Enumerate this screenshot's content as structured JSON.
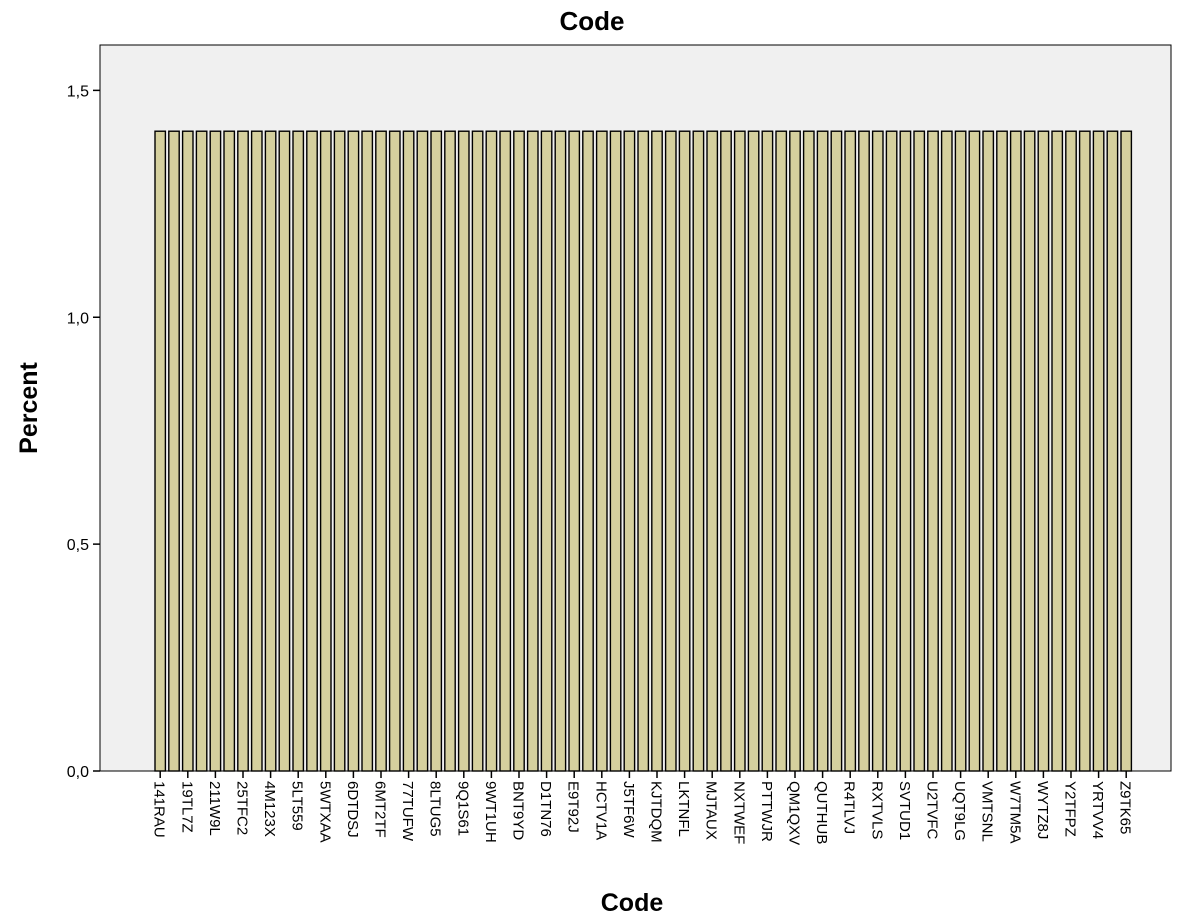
{
  "chart_data": {
    "type": "bar",
    "title": "Code",
    "xlabel": "Code",
    "ylabel": "Percent",
    "ylim": [
      0,
      1.6
    ],
    "yticks": [
      "0,0",
      "0,5",
      "1,0",
      "1,5"
    ],
    "ytick_values": [
      0,
      0.5,
      1.0,
      1.5
    ],
    "categories": [
      "141RAU",
      "19TL7Z",
      "211W9L",
      "25TFC2",
      "4M123X",
      "5LT559",
      "5WTXAA",
      "6DTDSJ",
      "6MT2TF",
      "77TUFW",
      "8LTUG5",
      "9Q1S61",
      "9WT1UH",
      "BNT9YD",
      "D1TN76",
      "E9T92J",
      "HCTV1A",
      "J5TF6W",
      "KJTDQM",
      "LKTNFL",
      "MJTAUX",
      "NXTWEF",
      "PTTWJR",
      "QM1QXV",
      "QUTHUB",
      "R4TLVJ",
      "RXTVLS",
      "SVTUD1",
      "U2TVFC",
      "UQT9LG",
      "VMTSNL",
      "W7TM5A",
      "WYTZ8J",
      "Y2TFPZ",
      "YRTVV4",
      "Z9TK65"
    ],
    "bar_count": 71,
    "bar_value": 1.41,
    "colors": {
      "bar_fill": "#d5d09e",
      "bar_stroke": "#000000",
      "plot_bg": "#f0f0f0"
    },
    "grid": false,
    "legend": "none"
  }
}
